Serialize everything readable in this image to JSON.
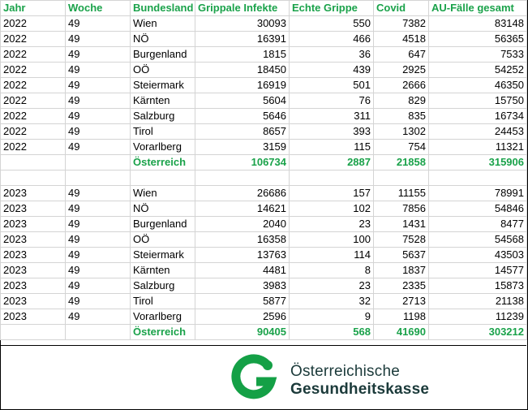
{
  "columns": [
    "Jahr",
    "Woche",
    "Bundesland",
    "Grippale Infekte",
    "Echte Grippe",
    "Covid",
    "AU-Fälle gesamt"
  ],
  "block_2022": {
    "rows": [
      [
        "2022",
        "49",
        "Wien",
        "30093",
        "550",
        "7382",
        "83148"
      ],
      [
        "2022",
        "49",
        "NÖ",
        "16391",
        "466",
        "4518",
        "56365"
      ],
      [
        "2022",
        "49",
        "Burgenland",
        "1815",
        "36",
        "647",
        "7533"
      ],
      [
        "2022",
        "49",
        "OÖ",
        "18450",
        "439",
        "2925",
        "54252"
      ],
      [
        "2022",
        "49",
        "Steiermark",
        "16919",
        "501",
        "2666",
        "46350"
      ],
      [
        "2022",
        "49",
        "Kärnten",
        "5604",
        "76",
        "829",
        "15750"
      ],
      [
        "2022",
        "49",
        "Salzburg",
        "5646",
        "311",
        "835",
        "16734"
      ],
      [
        "2022",
        "49",
        "Tirol",
        "8657",
        "393",
        "1302",
        "24453"
      ],
      [
        "2022",
        "49",
        "Vorarlberg",
        "3159",
        "115",
        "754",
        "11321"
      ]
    ],
    "total": [
      "Österreich",
      "106734",
      "2887",
      "21858",
      "315906"
    ]
  },
  "block_2023": {
    "rows": [
      [
        "2023",
        "49",
        "Wien",
        "26686",
        "157",
        "11155",
        "78991"
      ],
      [
        "2023",
        "49",
        "NÖ",
        "14621",
        "102",
        "7856",
        "54846"
      ],
      [
        "2023",
        "49",
        "Burgenland",
        "2040",
        "23",
        "1431",
        "8477"
      ],
      [
        "2023",
        "49",
        "OÖ",
        "16358",
        "100",
        "7528",
        "54568"
      ],
      [
        "2023",
        "49",
        "Steiermark",
        "13763",
        "114",
        "5637",
        "43503"
      ],
      [
        "2023",
        "49",
        "Kärnten",
        "4481",
        "8",
        "1837",
        "14577"
      ],
      [
        "2023",
        "49",
        "Salzburg",
        "3983",
        "23",
        "2335",
        "15873"
      ],
      [
        "2023",
        "49",
        "Tirol",
        "5877",
        "32",
        "2713",
        "21138"
      ],
      [
        "2023",
        "49",
        "Vorarlberg",
        "2596",
        "9",
        "1198",
        "11239"
      ]
    ],
    "total": [
      "Österreich",
      "90405",
      "568",
      "41690",
      "303212"
    ]
  },
  "logo": {
    "line1": "Österreichische",
    "line2": "Gesundheitskasse",
    "brand_color": "#14a046",
    "text_color": "#1b3a3a",
    "icon": "oegk-logo-mark"
  }
}
